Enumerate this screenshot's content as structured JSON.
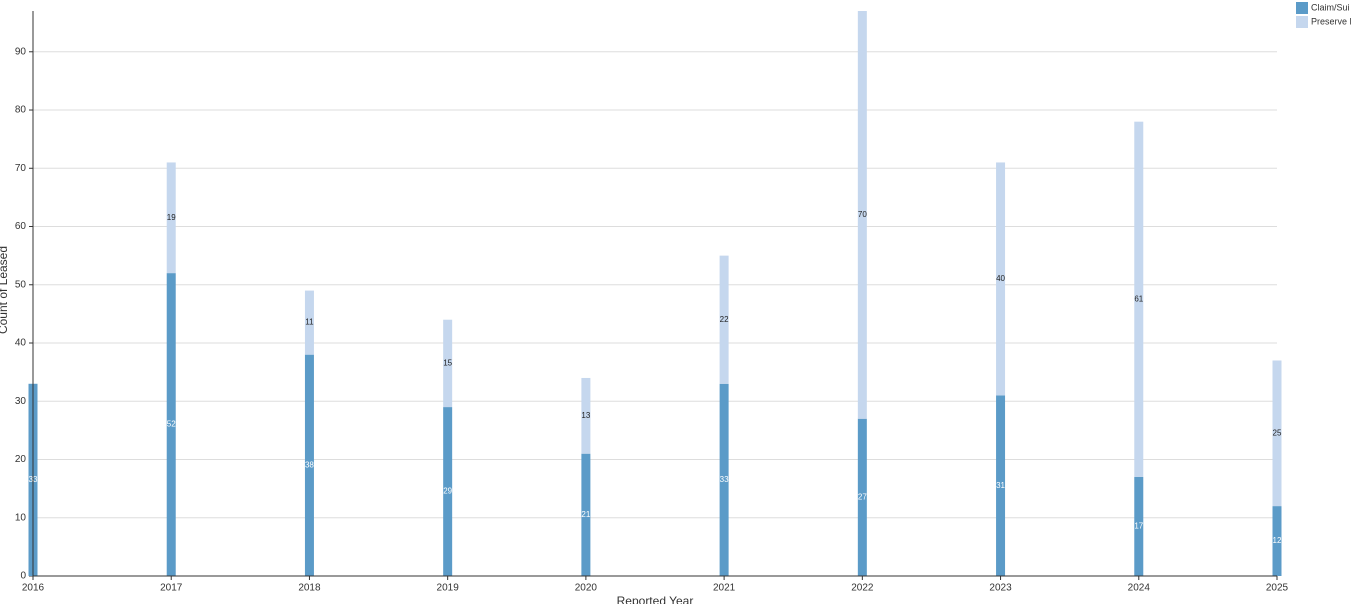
{
  "chart_data": {
    "type": "stacked-bar",
    "x_label": "Reported Year",
    "y_label": "Count of Leased",
    "x": [
      2016,
      2017,
      2018,
      2019,
      2020,
      2021,
      2022,
      2023,
      2024,
      2025
    ],
    "xlim": [
      2016,
      2025
    ],
    "xticks": [
      2016,
      2017,
      2018,
      2019,
      2020,
      2021,
      2022,
      2023,
      2024,
      2025
    ],
    "ylim": [
      0,
      97
    ],
    "yticks": [
      0,
      10,
      20,
      30,
      40,
      50,
      60,
      70,
      80,
      90
    ],
    "grid": true,
    "legend": "top-right",
    "series": [
      {
        "name": "Claim/Sui",
        "color": "#5b9bc8",
        "label_color": "#ffffff",
        "values": [
          33,
          52,
          38,
          29,
          21,
          33,
          27,
          31,
          17,
          12
        ]
      },
      {
        "name": "Preserve F",
        "color": "#c5d7ee",
        "label_color": "#222222",
        "values": [
          null,
          19,
          11,
          15,
          13,
          22,
          70,
          40,
          61,
          25
        ]
      }
    ]
  }
}
